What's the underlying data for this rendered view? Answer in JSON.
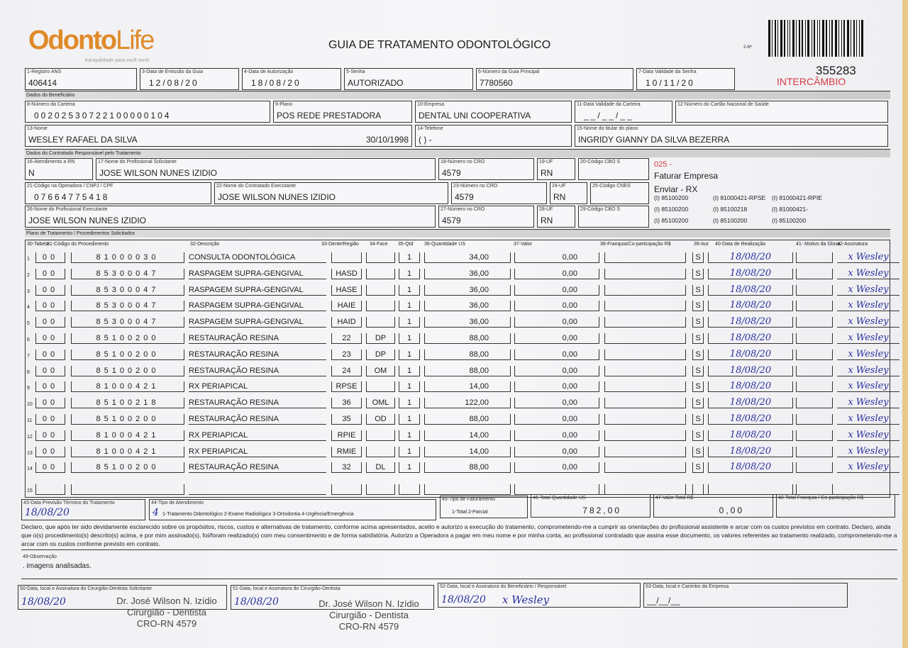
{
  "header": {
    "logo_main": "Odonto",
    "logo_life": "Life",
    "logo_tagline": "tranquilidade para você sorrir",
    "title": "GUIA DE TRATAMENTO ODONTOLÓGICO",
    "guide_no_label": "2-Nº",
    "guide_number": "355283",
    "exchange": "INTERCÂMBIO",
    "accent": "#e08a2a",
    "exchange_color": "#d63a44"
  },
  "fields": {
    "f1": {
      "label": "1-Registro ANS",
      "value": "406414"
    },
    "f3": {
      "label": "3-Data de Emissão da Guia",
      "value": "12/08/20"
    },
    "f4": {
      "label": "4-Data de Autorização",
      "value": "18/08/20"
    },
    "f5": {
      "label": "5-Senha",
      "value": "AUTORIZADO"
    },
    "f6": {
      "label": "6-Número da Guia Principal",
      "value": "7780560"
    },
    "f7": {
      "label": "7-Data Validade da Senha",
      "value": "10/11/20"
    },
    "f8": {
      "label": "8-Número da Carteira",
      "value": "00202530722100000104"
    },
    "f9": {
      "label": "9-Plano",
      "value": "POS REDE PRESTADORA"
    },
    "f10": {
      "label": "10-Empresa",
      "value": "DENTAL UNI  COOPERATIVA"
    },
    "f11": {
      "label": "11-Data Validade da Carteira",
      "value": "__/__/__"
    },
    "f12": {
      "label": "12-Número do Cartão Nacional de Saúde",
      "value": ""
    },
    "f13": {
      "label": "13-Nome",
      "value": "WESLEY RAFAEL DA SILVA",
      "birth": "30/10/1998"
    },
    "f14": {
      "label": "14-Telefone",
      "value": "(   )       -      "
    },
    "f15": {
      "label": "15-Nome do titular do plano",
      "value": "INGRIDY GIANNY DA SILVA BEZERRA"
    },
    "f16": {
      "label": "16-Atendimento a RN",
      "value": "N"
    },
    "f17": {
      "label": "17-Nome do Profissional Solicitante",
      "value": "JOSE WILSON NUNES IZIDIO"
    },
    "f18": {
      "label": "18-Número no CRO",
      "value": "4579"
    },
    "f19": {
      "label": "19-UF",
      "value": "RN"
    },
    "f20": {
      "label": "20-Código CBO S",
      "value": ""
    },
    "f21": {
      "label": "21-Código na Operadora / CNPJ / CPF",
      "value": "07664775418"
    },
    "f22": {
      "label": "22-Nome do Contratado Executante",
      "value": "JOSE WILSON NUNES IZIDIO"
    },
    "f23": {
      "label": "23-Número no CRO",
      "value": "4579"
    },
    "f24": {
      "label": "24-UF",
      "value": "RN"
    },
    "f25": {
      "label": "25-Código CNES",
      "value": ""
    },
    "f26": {
      "label": "26-Nome do Profissional Executante",
      "value": "JOSE WILSON NUNES IZIDIO"
    },
    "f27": {
      "label": "27-Número no CRO",
      "value": "4579"
    },
    "f28": {
      "label": "28-UF",
      "value": "RN"
    },
    "f29": {
      "label": "29-Código CBO S",
      "value": ""
    }
  },
  "sections": {
    "beneficiario": "Dados do Beneficiário",
    "contratado": "Dados do Contratado Responsável pelo Tratamento",
    "plano": "Plano de Tratamento / Procedimentos Solicitados"
  },
  "notes": {
    "code": "025 -",
    "line1": "Faturar Empresa",
    "line2": "Enviar - RX",
    "codes": [
      "(I) 85100200",
      "(I) 81000421-RPSE",
      "(I) 81000421-RPIE",
      "(I) 85100200",
      "(I) 85100218",
      "(I) 81000421-",
      "(I) 85100200",
      "(I) 85100200",
      "(I) 85100200"
    ]
  },
  "table": {
    "headers": [
      "30-Tabela",
      "31-Código do Procedimento",
      "32-Descrição",
      "33-Dente/Região",
      "34-Face",
      "35-Qtd",
      "36-Quantidade US",
      "37-Valor",
      "38-Franquia/Co-participação R$",
      "39-Aut",
      "40-Data de Realização",
      "41- Motivo da Glosa",
      "42-Assinatura"
    ],
    "rows": [
      [
        "1",
        "00",
        "81000030",
        "CONSULTA ODONTOLÓGICA",
        "",
        "",
        "1",
        "34,00",
        "0,00",
        "",
        "S",
        "18/08/20",
        "",
        "x Wesley"
      ],
      [
        "2",
        "00",
        "85300047",
        "RASPAGEM SUPRA-GENGIVAL",
        "HASD",
        "",
        "1",
        "36,00",
        "0,00",
        "",
        "S",
        "18/08/20",
        "",
        "x Wesley"
      ],
      [
        "3",
        "00",
        "85300047",
        "RASPAGEM SUPRA-GENGIVAL",
        "HASE",
        "",
        "1",
        "36,00",
        "0,00",
        "",
        "S",
        "18/08/20",
        "",
        "x Wesley"
      ],
      [
        "4",
        "00",
        "85300047",
        "RASPAGEM SUPRA-GENGIVAL",
        "HAIE",
        "",
        "1",
        "36,00",
        "0,00",
        "",
        "S",
        "18/08/20",
        "",
        "x Wesley"
      ],
      [
        "5",
        "00",
        "85300047",
        "RASPAGEM SUPRA-GENGIVAL",
        "HAID",
        "",
        "1",
        "36,00",
        "0,00",
        "",
        "S",
        "18/08/20",
        "",
        "x Wesley"
      ],
      [
        "6",
        "00",
        "85100200",
        "RESTAURAÇÃO RESINA",
        "22",
        "DP",
        "1",
        "88,00",
        "0,00",
        "",
        "S",
        "18/08/20",
        "",
        "x Wesley"
      ],
      [
        "7",
        "00",
        "85100200",
        "RESTAURAÇÃO RESINA",
        "23",
        "DP",
        "1",
        "88,00",
        "0,00",
        "",
        "S",
        "18/08/20",
        "",
        "x Wesley"
      ],
      [
        "8",
        "00",
        "85100200",
        "RESTAURAÇÃO RESINA",
        "24",
        "OM",
        "1",
        "88,00",
        "0,00",
        "",
        "S",
        "18/08/20",
        "",
        "x Wesley"
      ],
      [
        "9",
        "00",
        "81000421",
        "RX PERIAPICAL",
        "RPSE",
        "",
        "1",
        "14,00",
        "0,00",
        "",
        "S",
        "18/08/20",
        "",
        "x Wesley"
      ],
      [
        "10",
        "00",
        "85100218",
        "RESTAURAÇÃO RESINA",
        "36",
        "OML",
        "1",
        "122,00",
        "0,00",
        "",
        "S",
        "18/08/20",
        "",
        "x Wesley"
      ],
      [
        "11",
        "00",
        "85100200",
        "RESTAURAÇÃO RESINA",
        "35",
        "OD",
        "1",
        "88,00",
        "0,00",
        "",
        "S",
        "18/08/20",
        "",
        "x Wesley"
      ],
      [
        "12",
        "00",
        "81000421",
        "RX PERIAPICAL",
        "RPIE",
        "",
        "1",
        "14,00",
        "0,00",
        "",
        "S",
        "18/08/20",
        "",
        "x Wesley"
      ],
      [
        "13",
        "00",
        "81000421",
        "RX PERIAPICAL",
        "RMIE",
        "",
        "1",
        "14,00",
        "0,00",
        "",
        "S",
        "18/08/20",
        "",
        "x Wesley"
      ],
      [
        "14",
        "00",
        "85100200",
        "RESTAURAÇÃO RESINA",
        "32",
        "DL",
        "1",
        "88,00",
        "0,00",
        "",
        "S",
        "18/08/20",
        "",
        "x Wesley"
      ],
      [
        "15",
        "",
        "",
        "",
        "",
        "",
        "",
        "",
        "",
        "",
        "",
        "",
        "",
        ""
      ]
    ]
  },
  "footer": {
    "f43": {
      "label": "43-Data Previsão Término do Tratamento",
      "value": "18/08/20"
    },
    "f44": {
      "label": "44-Tipo de Atendimento",
      "value": "4",
      "options": "1-Tratamento Odontológico  2-Exame Radiológico  3-Ortodontia  4-Urgência/Emergência"
    },
    "f45": {
      "label": "45-Tipo de Faturamento",
      "value": "",
      "options": "1-Total  2-Parcial"
    },
    "f46": {
      "label": "46-Total Quantidade US",
      "value": "782,00"
    },
    "f47": {
      "label": "47-Valor Total R$",
      "value": "0,00"
    },
    "f48": {
      "label": "48-Total Franquia / Co-participação R$",
      "value": ""
    },
    "declaration": "Declaro, que após ter sido devidamente esclarecido sobre os propósitos, riscos, custos e alternativas de tratamento, conforme acima apresentados, aceito e autorizo a execução do tratamento, comprometendo-me a cumprir as orientações do profissional assistente e arcar com os custos previstos em contrato. Declaro, ainda que o(s) procedimento(s) descrito(s) acima, e por mim assinado(s), foi/foram realizado(s) com meu consentimento e de forma satisfatória. Autorizo a Operadora a pagar em meu nome e por minha conta, ao profissional contratado que assina esse documento, os valores referentes ao tratamento realizado, comprometendo-me a arcar com os custos conforme previsto em contrato.",
    "f49": {
      "label": "49-Observação",
      "value": ". imagens analisadas."
    },
    "f50": {
      "label": "50-Data, local e Assinatura do Cirurgião-Dentista Solicitante",
      "value": "18/08/20"
    },
    "f51": {
      "label": "51-Data, local e Assinatura do Cirurgião-Dentista",
      "value": "18/08/20"
    },
    "f52": {
      "label": "52-Data, local e Assinatura do Beneficiário / Responsável",
      "value": "18/08/20",
      "signature": "x Wesley"
    },
    "f53": {
      "label": "53-Data, local e Carimbo da Empresa",
      "value": "__/__/__"
    },
    "stamp": {
      "name": "Dr. José Wilson N. Izídio",
      "role": "Cirurgião - Dentista",
      "cro": "CRO-RN 4579"
    }
  }
}
